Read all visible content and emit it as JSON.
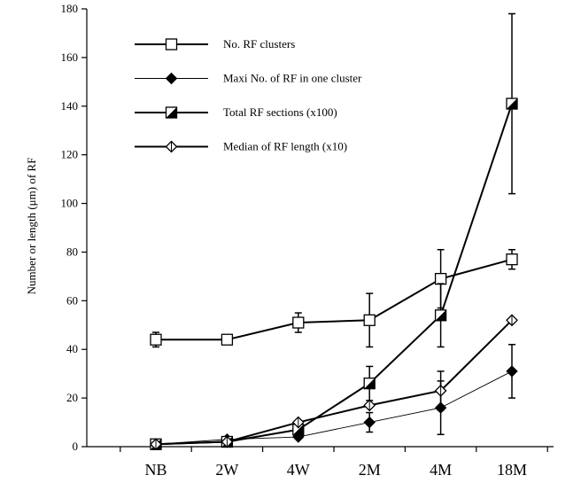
{
  "chart_data": {
    "type": "line",
    "title": "",
    "xlabel": "",
    "ylabel": "Number or length (μm) of RF",
    "ylim": [
      0,
      180
    ],
    "yticks": [
      0,
      20,
      40,
      60,
      80,
      100,
      120,
      140,
      160,
      180
    ],
    "categories": [
      "NB",
      "2W",
      "4W",
      "2M",
      "4M",
      "18M"
    ],
    "legend_position": "top-left",
    "grid": false,
    "series": [
      {
        "name": "No. RF clusters",
        "marker": "open-square",
        "line_weight": "thick",
        "values": [
          44,
          44,
          51,
          52,
          69,
          77
        ],
        "errors": [
          3,
          null,
          4,
          11,
          12,
          4
        ]
      },
      {
        "name": "Maxi No. of  RF in one cluster",
        "marker": "filled-diamond",
        "line_weight": "thin",
        "values": [
          1,
          3,
          4,
          10,
          16,
          31
        ],
        "errors": [
          null,
          null,
          null,
          4,
          11,
          11
        ]
      },
      {
        "name": "Total RF sections (x100)",
        "marker": "half-filled-square",
        "line_weight": "thick",
        "values": [
          1,
          2,
          7,
          26,
          54,
          141
        ],
        "errors": [
          null,
          null,
          null,
          7,
          13,
          37
        ]
      },
      {
        "name": "Median of RF length (x10)",
        "marker": "crossed-diamond",
        "line_weight": "thick",
        "values": [
          1,
          2,
          10,
          17,
          23,
          52
        ],
        "errors": [
          null,
          null,
          null,
          null,
          8,
          null
        ]
      }
    ]
  }
}
